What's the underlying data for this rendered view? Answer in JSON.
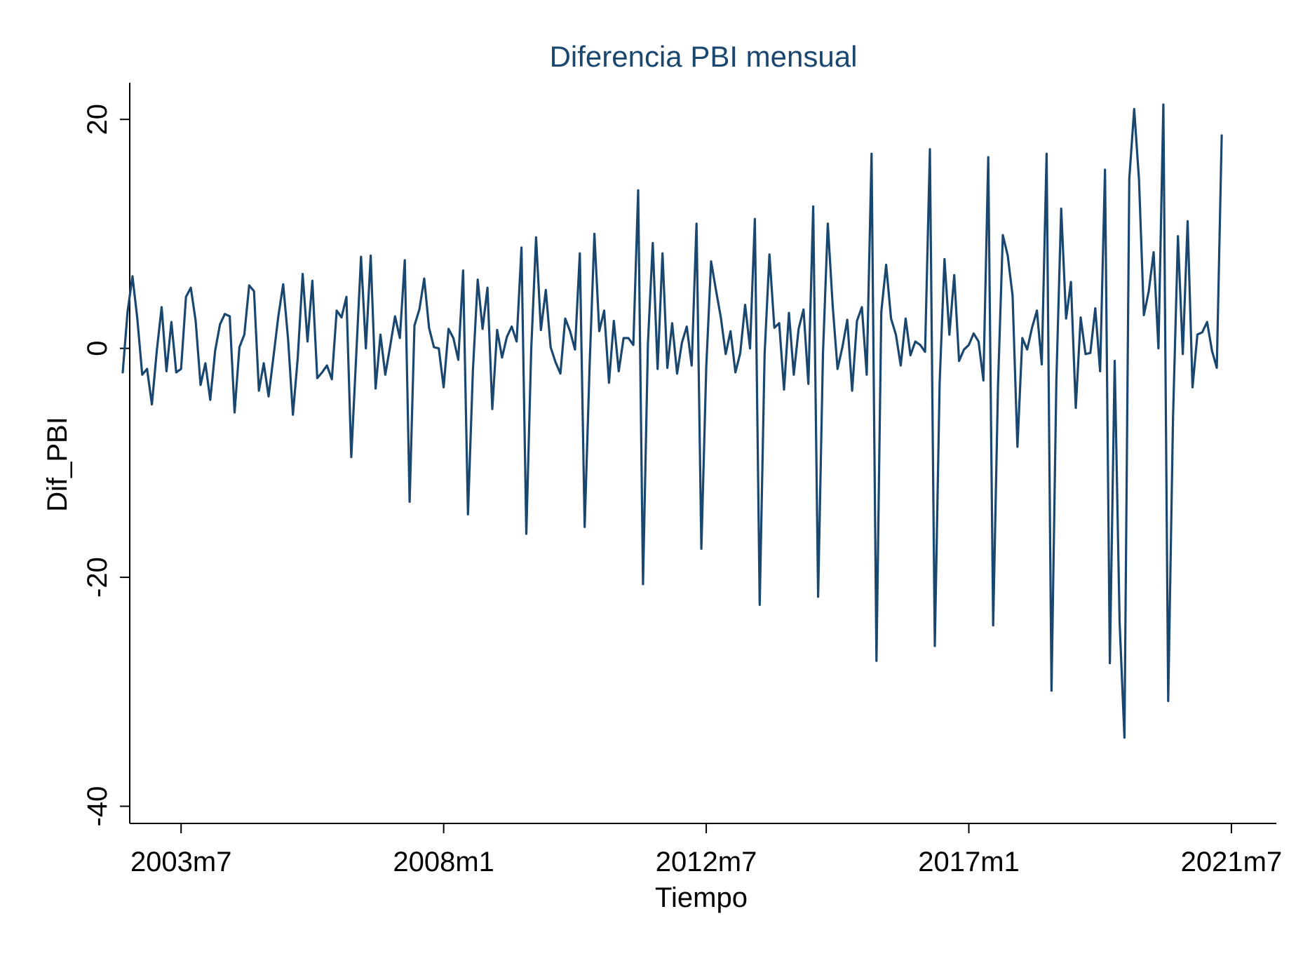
{
  "chart_data": {
    "type": "line",
    "title": "Diferencia PBI mensual",
    "xlabel": "Tiempo",
    "ylabel": "Dif_PBI",
    "x_tick_labels": [
      "2003m7",
      "2008m1",
      "2012m7",
      "2017m1",
      "2021m7"
    ],
    "x_tick_values": [
      2003.5,
      2008.0,
      2012.5,
      2017.0,
      2021.5
    ],
    "y_ticks": [
      -40,
      -20,
      0,
      20
    ],
    "ylim": [
      -41.5,
      23.2
    ],
    "xlim": [
      2002.62,
      2022.27
    ],
    "grid": false,
    "line_color": "#1a476f",
    "series": [
      {
        "x_start": "2002m7",
        "frequency": "monthly",
        "values": [
          -2.1,
          3.2,
          6.3,
          2.6,
          -2.3,
          -1.8,
          -4.9,
          -0.2,
          3.6,
          -2.0,
          2.3,
          -2.1,
          -1.8,
          4.5,
          5.3,
          2.4,
          -3.2,
          -1.3,
          -4.5,
          -0.2,
          2.1,
          3.0,
          2.8,
          -5.6,
          0.1,
          1.2,
          5.5,
          5.0,
          -3.7,
          -1.3,
          -4.2,
          -0.7,
          2.8,
          5.6,
          0.8,
          -5.8,
          -0.8,
          6.5,
          0.6,
          5.9,
          -2.6,
          -2.1,
          -1.5,
          -2.7,
          3.3,
          2.7,
          4.5,
          -9.5,
          -0.8,
          8.0,
          0.0,
          8.1,
          -3.5,
          1.2,
          -2.3,
          0.2,
          2.8,
          0.9,
          7.7,
          -13.4,
          2.0,
          3.4,
          6.1,
          1.8,
          0.1,
          0.0,
          -3.4,
          1.7,
          0.9,
          -1.0,
          6.8,
          -14.5,
          -2.0,
          6.0,
          1.7,
          5.3,
          -5.3,
          1.6,
          -0.8,
          1.0,
          1.9,
          0.6,
          8.8,
          -16.2,
          -0.1,
          9.7,
          1.6,
          5.1,
          0.1,
          -1.2,
          -2.2,
          2.6,
          1.5,
          -0.1,
          8.3,
          -15.6,
          -1.6,
          10.0,
          1.5,
          3.3,
          -3.0,
          2.4,
          -2.0,
          0.9,
          0.9,
          0.3,
          13.8,
          -20.6,
          0.4,
          9.2,
          -1.8,
          8.3,
          -1.7,
          2.2,
          -2.2,
          0.5,
          1.9,
          -1.5,
          10.9,
          -17.5,
          -1.6,
          7.6,
          5.1,
          2.7,
          -0.5,
          1.5,
          -2.1,
          -0.4,
          3.8,
          0.0,
          11.3,
          -22.4,
          -0.5,
          8.2,
          1.8,
          2.2,
          -3.6,
          3.1,
          -2.3,
          1.7,
          3.4,
          -3.1,
          12.4,
          -21.7,
          -0.5,
          10.9,
          3.7,
          -1.8,
          0.1,
          2.5,
          -3.7,
          2.4,
          3.6,
          -2.3,
          17.0,
          -27.3,
          3.2,
          7.3,
          2.6,
          1.2,
          -1.5,
          2.6,
          -0.6,
          0.6,
          0.3,
          -0.3,
          17.4,
          -26.0,
          -3.0,
          7.8,
          1.2,
          6.4,
          -1.1,
          -0.1,
          0.3,
          1.3,
          0.6,
          -2.8,
          16.7,
          -24.2,
          -3.3,
          9.9,
          8.1,
          4.6,
          -8.6,
          0.9,
          -0.1,
          1.8,
          3.3,
          -1.4,
          17.0,
          -29.9,
          -2.9,
          12.2,
          2.6,
          5.8,
          -5.2,
          2.7,
          -0.5,
          -0.4,
          3.5,
          -2.0,
          15.6,
          -27.5,
          -1.1,
          -23.9,
          -34.0,
          14.8,
          20.9,
          14.7,
          2.9,
          5.0,
          8.4,
          0.0,
          21.3,
          -30.8,
          -6.0,
          9.8,
          -0.5,
          11.1,
          -3.4,
          1.2,
          1.4,
          2.3,
          -0.2,
          -1.7,
          18.6
        ]
      }
    ]
  }
}
